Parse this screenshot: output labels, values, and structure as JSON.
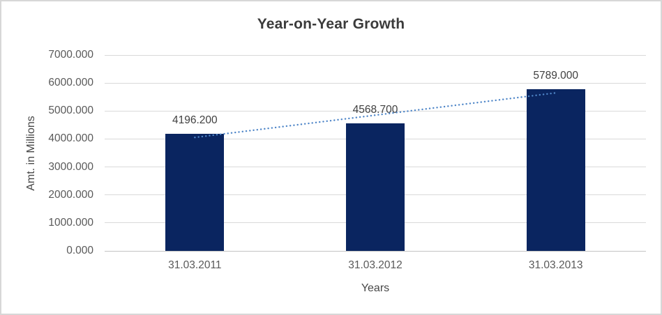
{
  "chart": {
    "frame_border_color": "#d7d7d7",
    "background": "#ffffff",
    "gridline_color": "#d9d9d9",
    "axis_line_color": "#c3c3c3"
  },
  "chart_data": {
    "type": "bar",
    "title": "Year-on-Year Growth",
    "categories": [
      "31.03.2011",
      "31.03.2012",
      "31.03.2013"
    ],
    "values": [
      4196.2,
      4568.7,
      5789.0
    ],
    "data_labels": [
      "4196.200",
      "4568.700",
      "5789.000"
    ],
    "xlabel": "Years",
    "ylabel": "Amt. in Millions",
    "ylim": [
      0,
      7000
    ],
    "ytick_step": 1000,
    "ytick_labels": [
      "0.000",
      "1000.000",
      "2000.000",
      "3000.000",
      "4000.000",
      "5000.000",
      "6000.000",
      "7000.000"
    ],
    "grid": true,
    "legend": "none",
    "bar_color": "#0a2560",
    "trendline": {
      "type": "linear",
      "style": "dotted",
      "color": "#4f86c8",
      "values": [
        4054.9,
        4851.3,
        5647.7
      ]
    }
  }
}
